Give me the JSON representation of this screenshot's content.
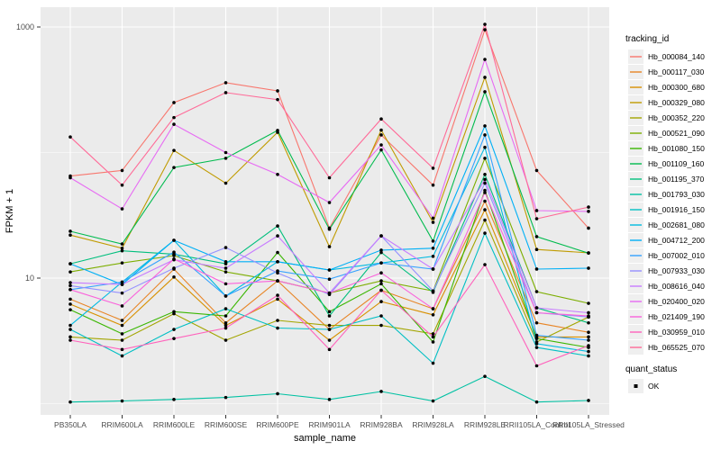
{
  "chart_data": {
    "type": "line",
    "title": "",
    "xlabel": "sample_name",
    "ylabel": "FPKM + 1",
    "y_scale": "log10",
    "y_tick_labels": [
      "1000",
      "10"
    ],
    "y_ticks": [
      1000,
      10
    ],
    "y_minor_gridlines": [
      100,
      1
    ],
    "ylim": [
      1,
      1200
    ],
    "grid": true,
    "panel_color": "#EBEBEB",
    "gridline_color": "#FFFFFF",
    "point_color": "#000000",
    "axis_text_color": "#4D4D4D",
    "legend_position": "right",
    "legend_title": "tracking_id",
    "legend2_title": "quant_status",
    "legend2_items": [
      {
        "label": "OK"
      }
    ],
    "categories": [
      "PB350LA",
      "RRIM600LA",
      "RRIM600LE",
      "RRIM600SE",
      "RRIM600PE",
      "RRIM901LA",
      "RRIM928BA",
      "RRIM928LA",
      "RRIM928LE",
      "RRII105LA_Control",
      "RRII105LA_Stressed"
    ],
    "series": [
      {
        "name": "Hb_000084_140",
        "color": "#F8766D",
        "values": [
          65,
          72,
          250,
          360,
          310,
          25,
          138,
          55,
          950,
          72,
          25
        ]
      },
      {
        "name": "Hb_000117_030",
        "color": "#E88526",
        "values": [
          6.8,
          4.6,
          11.8,
          4.4,
          9.5,
          3.9,
          8.0,
          5.7,
          41,
          4.4,
          3.7
        ]
      },
      {
        "name": "Hb_000300_680",
        "color": "#D89000",
        "values": [
          6.2,
          4.2,
          10.2,
          4.2,
          6.8,
          3.2,
          6.5,
          5.1,
          35,
          3.4,
          3.4
        ]
      },
      {
        "name": "Hb_000329_080",
        "color": "#C09B00",
        "values": [
          22,
          17.3,
          104,
          57,
          145,
          17.8,
          151,
          27.8,
          397,
          16.9,
          15.9
        ]
      },
      {
        "name": "Hb_000352_220",
        "color": "#A3A500",
        "values": [
          3.4,
          3.2,
          5.2,
          3.2,
          4.6,
          4.2,
          4.2,
          3.6,
          29,
          3.1,
          4.9
        ]
      },
      {
        "name": "Hb_000521_090",
        "color": "#7CAE00",
        "values": [
          11.2,
          13.2,
          15.1,
          11.2,
          9.5,
          7.6,
          9.5,
          7.9,
          90,
          7.8,
          6.3
        ]
      },
      {
        "name": "Hb_001080_150",
        "color": "#39B600",
        "values": [
          5.6,
          3.6,
          5.4,
          5.0,
          16,
          5.4,
          9.0,
          3.1,
          50,
          3.3,
          2.8
        ]
      },
      {
        "name": "Hb_001109_160",
        "color": "#00BB4E",
        "values": [
          23.6,
          18.7,
          76,
          90,
          150,
          24.5,
          105,
          19.7,
          305,
          21.4,
          15.8
        ]
      },
      {
        "name": "Hb_001195_370",
        "color": "#00BF7D",
        "values": [
          13,
          16.5,
          15.5,
          13,
          26,
          5.0,
          16,
          7.7,
          67,
          5.8,
          4.4
        ]
      },
      {
        "name": "Hb_001793_030",
        "color": "#00C1A3",
        "values": [
          1.03,
          1.05,
          1.08,
          1.12,
          1.2,
          1.08,
          1.25,
          1.05,
          1.65,
          1.03,
          1.06
        ]
      },
      {
        "name": "Hb_001916_150",
        "color": "#00BFC4",
        "values": [
          3.9,
          2.4,
          3.9,
          5.7,
          4.0,
          3.9,
          5.0,
          2.1,
          22.8,
          2.8,
          2.4
        ]
      },
      {
        "name": "Hb_002681_080",
        "color": "#00BAE0",
        "values": [
          4.2,
          9.3,
          20,
          7.2,
          13.5,
          11.6,
          13.2,
          14.9,
          110,
          3.0,
          2.6
        ]
      },
      {
        "name": "Hb_004712_200",
        "color": "#00B0F6",
        "values": [
          13,
          8.9,
          20,
          13.5,
          13.5,
          11.6,
          16.7,
          17.3,
          163,
          11.8,
          12
        ]
      },
      {
        "name": "Hb_007002_010",
        "color": "#35A2FF",
        "values": [
          8.1,
          9.3,
          16.1,
          7.2,
          11.4,
          9.8,
          13.2,
          11.8,
          138,
          3.5,
          3.2
        ]
      },
      {
        "name": "Hb_007933_030",
        "color": "#9590FF",
        "values": [
          8.7,
          7.6,
          12,
          17.5,
          11,
          7.4,
          21.7,
          7.9,
          57,
          5.3,
          4.9
        ]
      },
      {
        "name": "Hb_008616_040",
        "color": "#C77CFF",
        "values": [
          9.2,
          8.9,
          14,
          12,
          21.7,
          7.6,
          21.7,
          11.8,
          61,
          5.8,
          5.3
        ]
      },
      {
        "name": "Hb_020400_020",
        "color": "#E76BF3",
        "values": [
          63,
          35.6,
          168,
          100,
          67,
          40,
          115,
          30,
          552,
          34.5,
          34
        ]
      },
      {
        "name": "Hb_021409_190",
        "color": "#FA62DB",
        "values": [
          8.1,
          6.0,
          14.2,
          9.0,
          9.5,
          7.6,
          11,
          5.7,
          48,
          5.3,
          5.0
        ]
      },
      {
        "name": "Hb_030959_010",
        "color": "#FF62BC",
        "values": [
          3.2,
          2.7,
          3.3,
          4.0,
          7.3,
          2.7,
          8.0,
          3.4,
          12.8,
          2.0,
          2.9
        ]
      },
      {
        "name": "Hb_065525_070",
        "color": "#FF6A98",
        "values": [
          133,
          55,
          190,
          300,
          264,
          63,
          185,
          75,
          1050,
          29.7,
          36.8
        ]
      }
    ]
  }
}
